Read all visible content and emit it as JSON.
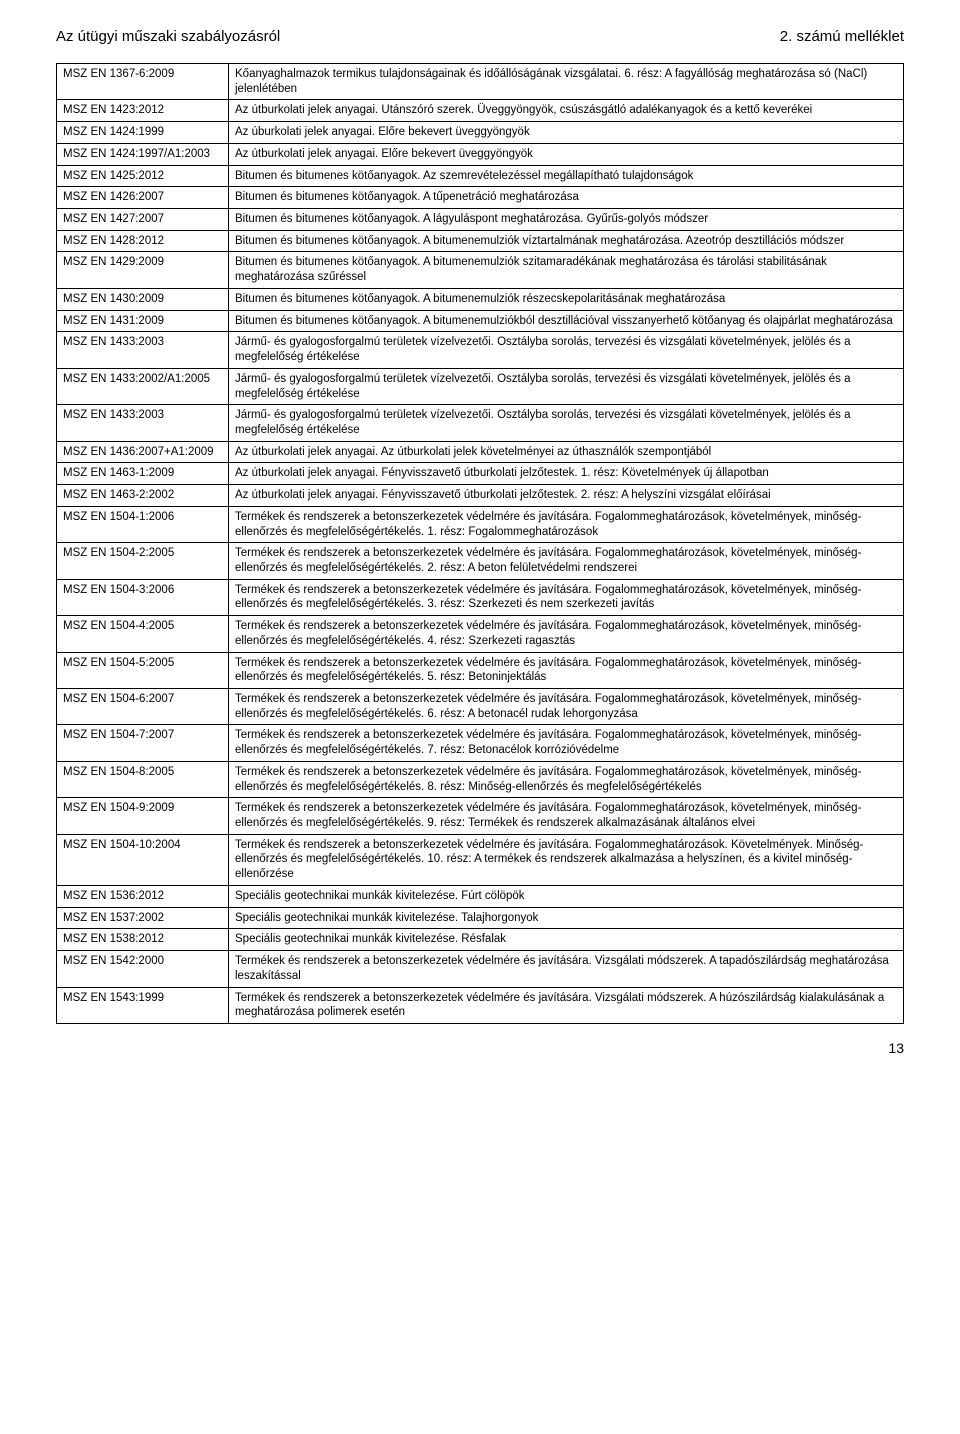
{
  "header": {
    "left": "Az útügyi műszaki szabályozásról",
    "right": "2. számú melléklet"
  },
  "rows": [
    {
      "code": "MSZ EN 1367-6:2009",
      "desc": "Kőanyaghalmazok termikus tulajdonságainak és időállóságának vizsgálatai. 6. rész: A fagyállóság meghatározása só (NaCl) jelenlétében"
    },
    {
      "code": "MSZ EN 1423:2012",
      "desc": "Az útburkolati jelek anyagai. Utánszóró szerek. Üveggyöngyök, csúszásgátló adalékanyagok és a kettő keverékei"
    },
    {
      "code": "MSZ EN 1424:1999",
      "desc": "Az úburkolati jelek anyagai. Előre bekevert üveggyöngyök"
    },
    {
      "code": "MSZ EN 1424:1997/A1:2003",
      "desc": "Az útburkolati jelek anyagai. Előre bekevert üveggyöngyök"
    },
    {
      "code": "MSZ EN 1425:2012",
      "desc": "Bitumen és bitumenes kötőanyagok. Az szemrevételezéssel megállapítható tulajdonságok"
    },
    {
      "code": "MSZ EN 1426:2007",
      "desc": "Bitumen és bitumenes kötőanyagok. A tűpenetráció meghatározása"
    },
    {
      "code": "MSZ EN 1427:2007",
      "desc": "Bitumen és bitumenes kötőanyagok. A lágyuláspont meghatározása. Gyűrűs-golyós módszer"
    },
    {
      "code": "MSZ EN 1428:2012",
      "desc": "Bitumen és bitumenes kötőanyagok. A bitumenemulziók víztartalmának meghatározása. Azeotróp desztillációs módszer"
    },
    {
      "code": "MSZ EN 1429:2009",
      "desc": "Bitumen és bitumenes kötőanyagok. A bitumenemulziók szitamaradékának meghatározása és tárolási stabilitásának meghatározása szűréssel"
    },
    {
      "code": "MSZ EN 1430:2009",
      "desc": "Bitumen és bitumenes kötőanyagok. A bitumenemulziók részecskepolaritásának meghatározása"
    },
    {
      "code": "MSZ EN 1431:2009",
      "desc": "Bitumen és bitumenes kötőanyagok. A bitumenemulziókból desztillációval visszanyerhető kötőanyag és olajpárlat meghatározása"
    },
    {
      "code": "MSZ EN 1433:2003",
      "desc": "Jármű- és gyalogosforgalmú területek vízelvezetői. Osztályba sorolás, tervezési és vizsgálati követelmények, jelölés és a megfelelőség értékelése"
    },
    {
      "code": "MSZ EN 1433:2002/A1:2005",
      "desc": "Jármű- és gyalogosforgalmú területek vízelvezetői. Osztályba sorolás, tervezési és vizsgálati követelmények, jelölés és a megfelelőség értékelése"
    },
    {
      "code": "MSZ EN 1433:2003",
      "desc": "Jármű- és gyalogosforgalmú területek vízelvezetői. Osztályba sorolás, tervezési és vizsgálati követelmények, jelölés és a megfelelőség értékelése"
    },
    {
      "code": "MSZ EN 1436:2007+A1:2009",
      "desc": "Az útburkolati jelek anyagai. Az útburkolati jelek követelményei az úthasználók szempontjából"
    },
    {
      "code": "MSZ EN 1463-1:2009",
      "desc": "Az útburkolati jelek anyagai. Fényvisszavető útburkolati jelzőtestek. 1. rész: Követelmények új állapotban"
    },
    {
      "code": "MSZ EN 1463-2:2002",
      "desc": "Az útburkolati jelek anyagai. Fényvisszavető útburkolati jelzőtestek. 2. rész: A helyszíni vizsgálat előírásai"
    },
    {
      "code": "MSZ EN 1504-1:2006",
      "desc": "Termékek és rendszerek a betonszerkezetek védelmére és javítására. Fogalommeghatározások, követelmények, minőség-ellenőrzés és megfelelőségértékelés. 1. rész: Fogalommeghatározások"
    },
    {
      "code": "MSZ EN 1504-2:2005",
      "desc": "Termékek és rendszerek a betonszerkezetek védelmére és javítására. Fogalommeghatározások, követelmények, minőség-ellenőrzés és megfelelőségértékelés. 2. rész: A beton felületvédelmi rendszerei"
    },
    {
      "code": "MSZ EN 1504-3:2006",
      "desc": "Termékek és rendszerek a betonszerkezetek védelmére és javítására. Fogalommeghatározások, követelmények, minőség-ellenőrzés és megfelelőségértékelés. 3. rész: Szerkezeti és nem szerkezeti javítás"
    },
    {
      "code": "MSZ EN 1504-4:2005",
      "desc": "Termékek és rendszerek a betonszerkezetek védelmére és javítására. Fogalommeghatározások, követelmények, minőség-ellenőrzés és megfelelőségértékelés. 4. rész: Szerkezeti ragasztás"
    },
    {
      "code": "MSZ EN 1504-5:2005",
      "desc": "Termékek és rendszerek a betonszerkezetek védelmére és javítására. Fogalommeghatározások, követelmények, minőség-ellenőrzés és megfelelőségértékelés. 5. rész: Betoninjektálás"
    },
    {
      "code": "MSZ EN 1504-6:2007",
      "desc": "Termékek és rendszerek a betonszerkezetek védelmére és javítására. Fogalommeghatározások, követelmények, minőség-ellenőrzés és megfelelőségértékelés. 6. rész: A betonacél rudak lehorgonyzása"
    },
    {
      "code": "MSZ EN 1504-7:2007",
      "desc": "Termékek és rendszerek a betonszerkezetek védelmére és javítására. Fogalommeghatározások, követelmények, minőség-ellenőrzés és megfelelőségértékelés. 7. rész: Betonacélok korrózióvédelme"
    },
    {
      "code": "MSZ EN 1504-8:2005",
      "desc": "Termékek és rendszerek a betonszerkezetek védelmére és javítására. Fogalommeghatározások, követelmények, minőség-ellenőrzés és megfelelőségértékelés. 8. rész: Minőség-ellenőrzés és megfelelőségértékelés"
    },
    {
      "code": "MSZ EN 1504-9:2009",
      "desc": "Termékek és rendszerek a betonszerkezetek védelmére és javítására. Fogalommeghatározások, követelmények, minőség-ellenőrzés és megfelelőségértékelés. 9. rész: Termékek és rendszerek alkalmazásának általános elvei"
    },
    {
      "code": "MSZ EN 1504-10:2004",
      "desc": "Termékek és rendszerek a betonszerkezetek védelmére és javítására. Fogalommeghatározások. Követelmények. Minőség-ellenőrzés és megfelelőségértékelés. 10. rész: A termékek és rendszerek alkalmazása a helyszínen, és a kivitel minőség-ellenőrzése"
    },
    {
      "code": "MSZ EN 1536:2012",
      "desc": "Speciális geotechnikai munkák kivitelezése. Fúrt cölöpök"
    },
    {
      "code": "MSZ EN 1537:2002",
      "desc": "Speciális geotechnikai munkák kivitelezése. Talajhorgonyok"
    },
    {
      "code": "MSZ EN 1538:2012",
      "desc": "Speciális geotechnikai munkák kivitelezése. Résfalak"
    },
    {
      "code": "MSZ EN 1542:2000",
      "desc": "Termékek és rendszerek a betonszerkezetek védelmére és javítására. Vizsgálati módszerek. A tapadószilárdság meghatározása leszakítással"
    },
    {
      "code": "MSZ EN 1543:1999",
      "desc": "Termékek és rendszerek a betonszerkezetek védelmére és javítására. Vizsgálati módszerek. A húzószilárdság kialakulásának a meghatározása polimerek esetén"
    }
  ],
  "page_number": "13"
}
